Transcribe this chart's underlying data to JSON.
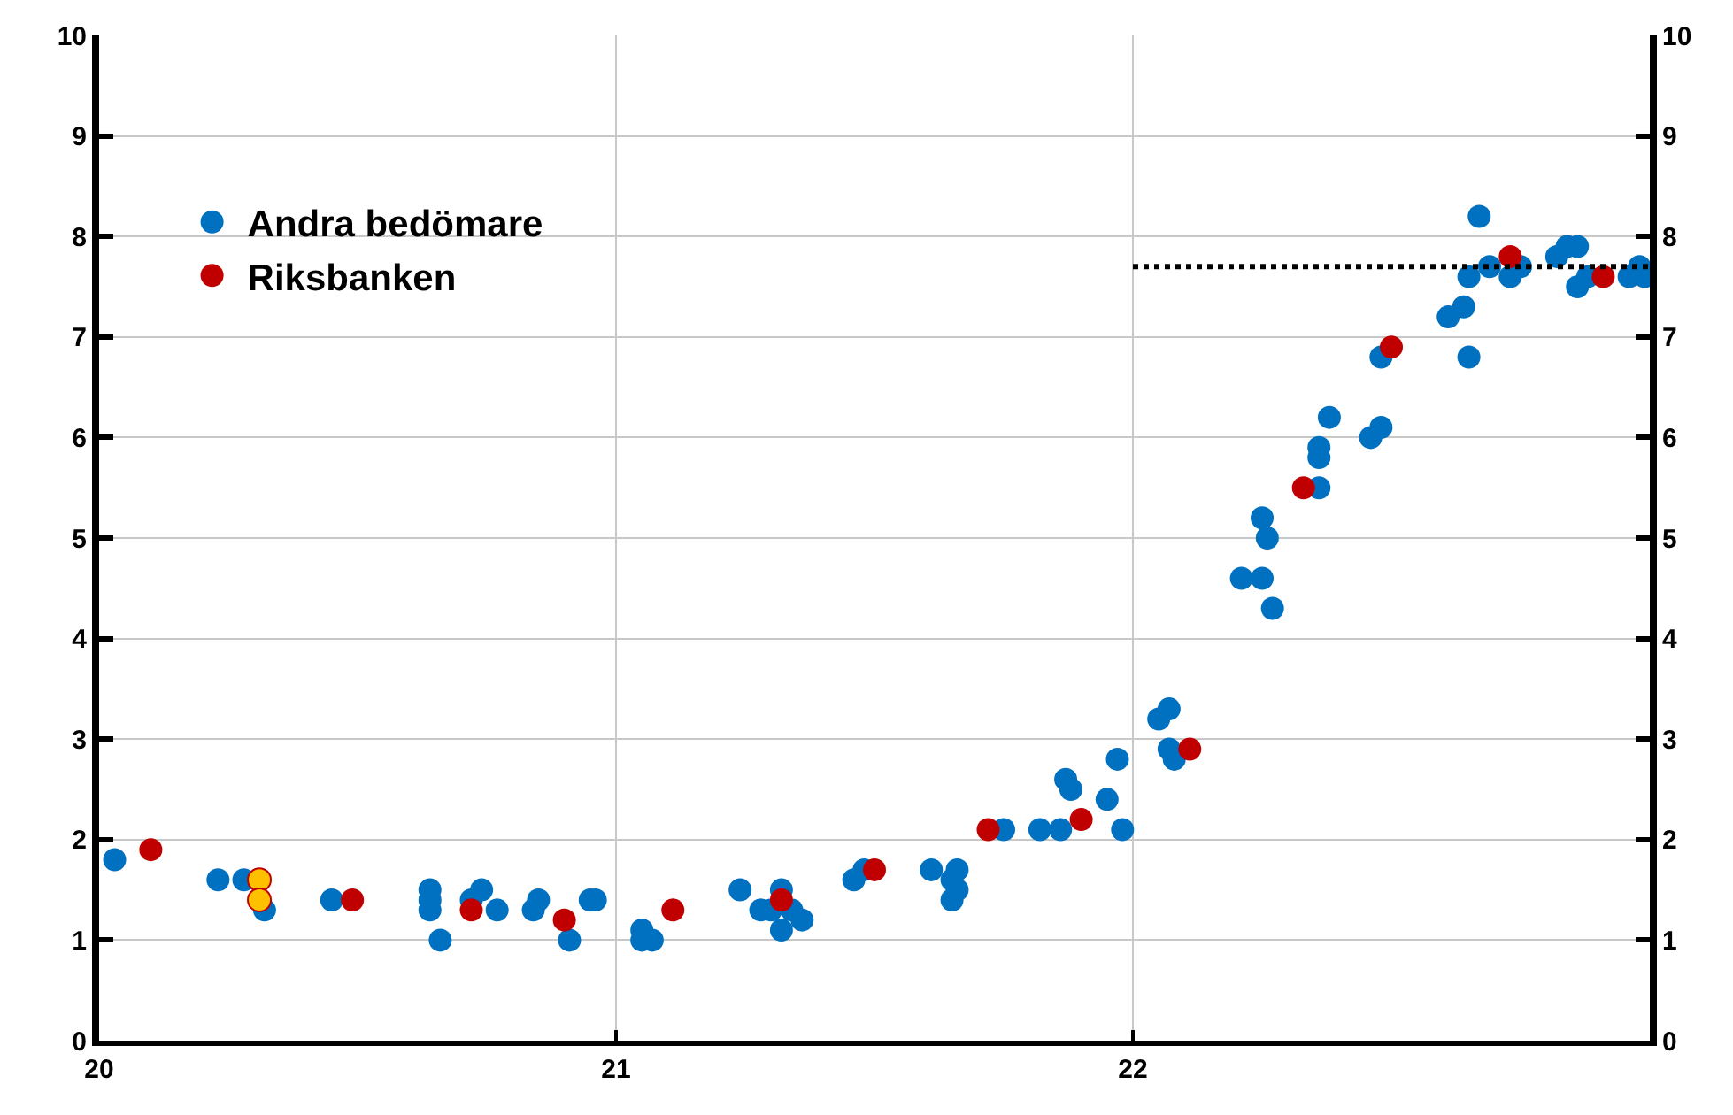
{
  "chart_data": {
    "type": "scatter",
    "marker": "circle",
    "grid": true,
    "legend": "top left",
    "xlim": [
      20,
      23
    ],
    "xticks": [
      20,
      21,
      22
    ],
    "ylim": [
      0,
      10
    ],
    "yticks": [
      0,
      1,
      2,
      3,
      4,
      5,
      6,
      7,
      8,
      9,
      10
    ],
    "y2lim": [
      0,
      10
    ],
    "y2ticks": [
      0,
      1,
      2,
      3,
      4,
      5,
      6,
      7,
      8,
      9,
      10
    ],
    "series": [
      {
        "name": "Andra bedömare",
        "color": "#0070c0",
        "x": [
          20.03,
          20.23,
          20.28,
          20.32,
          20.45,
          20.64,
          20.64,
          20.64,
          20.66,
          20.72,
          20.74,
          20.77,
          20.84,
          20.85,
          20.91,
          20.95,
          20.96,
          21.05,
          21.05,
          21.07,
          21.24,
          21.28,
          21.3,
          21.32,
          21.32,
          21.34,
          21.36,
          21.46,
          21.48,
          21.61,
          21.65,
          21.65,
          21.66,
          21.66,
          21.75,
          21.82,
          21.86,
          21.87,
          21.88,
          21.95,
          21.97,
          21.98,
          22.05,
          22.07,
          22.07,
          22.08,
          22.21,
          22.25,
          22.25,
          22.26,
          22.27,
          22.36,
          22.36,
          22.36,
          22.38,
          22.46,
          22.48,
          22.48,
          22.61,
          22.64,
          22.65,
          22.65,
          22.67,
          22.69,
          22.73,
          22.75,
          22.82,
          22.84,
          22.86,
          22.86,
          22.88,
          22.96,
          22.98,
          22.99
        ],
        "values": [
          1.8,
          1.6,
          1.6,
          1.3,
          1.4,
          1.5,
          1.4,
          1.3,
          1.0,
          1.4,
          1.5,
          1.3,
          1.3,
          1.4,
          1.0,
          1.4,
          1.4,
          1.1,
          1.0,
          1.0,
          1.5,
          1.3,
          1.3,
          1.5,
          1.1,
          1.3,
          1.2,
          1.6,
          1.7,
          1.7,
          1.6,
          1.4,
          1.5,
          1.7,
          2.1,
          2.1,
          2.1,
          2.6,
          2.5,
          2.4,
          2.8,
          2.1,
          3.2,
          3.3,
          2.9,
          2.8,
          4.6,
          5.2,
          4.6,
          5.0,
          4.3,
          5.5,
          5.9,
          5.8,
          6.2,
          6.0,
          6.1,
          6.8,
          7.2,
          7.3,
          6.8,
          7.6,
          8.2,
          7.7,
          7.6,
          7.7,
          7.8,
          7.9,
          7.9,
          7.5,
          7.6,
          7.6,
          7.7,
          7.6
        ]
      },
      {
        "name": "Riksbanken",
        "color": "#c00000",
        "x": [
          20.1,
          20.49,
          20.72,
          20.9,
          21.11,
          21.32,
          21.5,
          21.72,
          21.9,
          22.11,
          22.33,
          22.5,
          22.73,
          22.91
        ],
        "values": [
          1.9,
          1.4,
          1.3,
          1.2,
          1.3,
          1.4,
          1.7,
          2.1,
          2.2,
          2.9,
          5.5,
          6.9,
          7.8,
          7.6
        ]
      },
      {
        "color": "#ffc000",
        "x": [
          20.31,
          20.31
        ],
        "values": [
          1.6,
          1.4
        ]
      },
      {
        "type": "line",
        "line_style": "dotted",
        "marker": "none",
        "color": "#000000",
        "x": [
          22,
          23
        ],
        "values": [
          7.7,
          7.7
        ]
      }
    ]
  }
}
